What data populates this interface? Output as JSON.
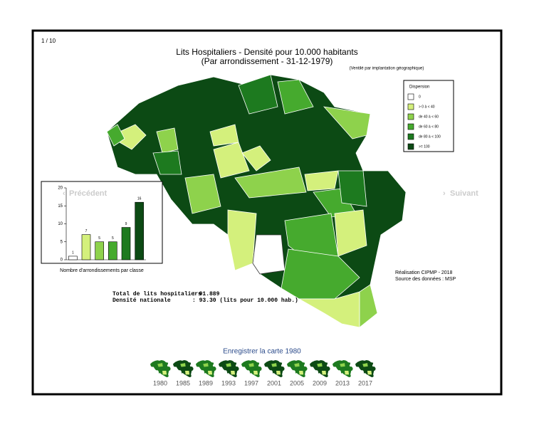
{
  "header": {
    "counter": "1 / 10",
    "title": "Lits Hospitaliers - Densité pour 10.000 habitants",
    "subtitle": "(Par arrondissement - 31-12-1979)",
    "note": "(Ventilé par implantation géographique)"
  },
  "navigation": {
    "previous": "Précédent",
    "next": "Suivant"
  },
  "legend": {
    "title": "Dispersion",
    "items": [
      {
        "label": "0",
        "color": "#ffffff"
      },
      {
        "label": "> 0 à < 40",
        "color": "#d4f07c"
      },
      {
        "label": "de 40 à < 60",
        "color": "#8ed24c"
      },
      {
        "label": "de 60 à < 80",
        "color": "#46aa2e"
      },
      {
        "label": "de 80 à < 100",
        "color": "#1d7a1f"
      },
      {
        "label": ">= 100",
        "color": "#0c4a14"
      }
    ]
  },
  "chart_data": {
    "type": "bar",
    "x_label": "Nombre d'arrondissements par classe",
    "categories": [
      null,
      null,
      null,
      null,
      null,
      null
    ],
    "values": [
      1,
      7,
      5,
      5,
      9,
      16
    ],
    "colors": [
      "#ffffff",
      "#d4f07c",
      "#8ed24c",
      "#46aa2e",
      "#1d7a1f",
      "#0c4a14"
    ],
    "ylim": [
      0,
      20
    ],
    "yticks": [
      0,
      5,
      10,
      15,
      20
    ]
  },
  "credits": {
    "line1": "Réalisation CIPMP - 2018",
    "line2": "Source des données : MSP"
  },
  "stats": {
    "rows": [
      [
        "Total de lits hospitaliers",
        ": 91.889"
      ],
      [
        "Densité nationale",
        ": 93.30 (lits pour 10.000 hab.)"
      ]
    ]
  },
  "save_link": "Enregistrer la carte 1980",
  "years": [
    "1980",
    "1985",
    "1989",
    "1993",
    "1997",
    "2001",
    "2005",
    "2009",
    "2013",
    "2017"
  ]
}
